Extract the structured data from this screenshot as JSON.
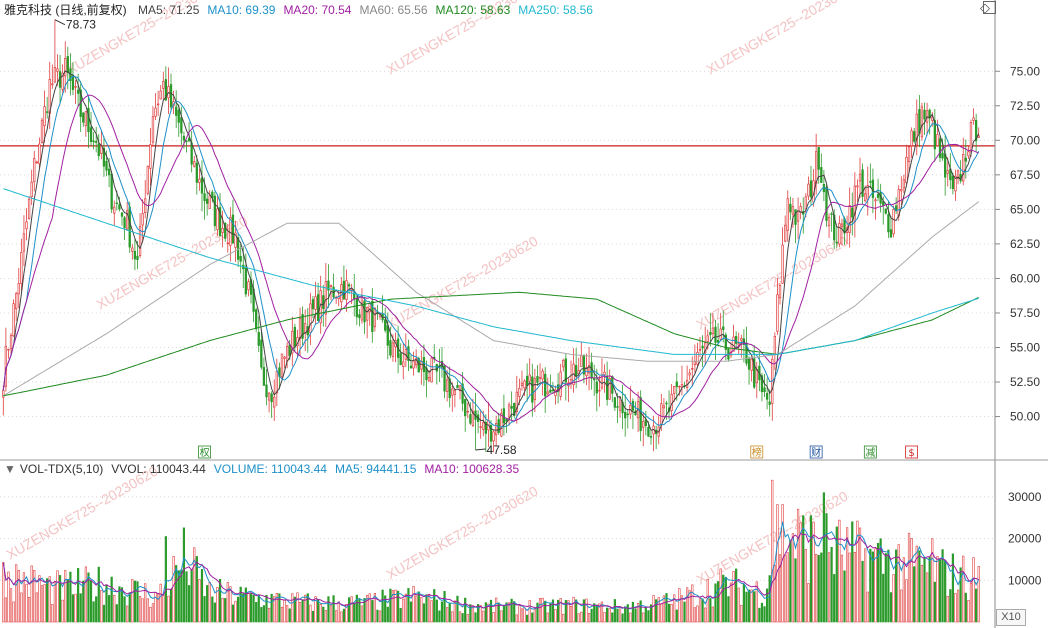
{
  "header": {
    "title": "雅克科技 (日线,前复权)",
    "ma_items": [
      {
        "label": "MA5: 71.25",
        "color": "#444444"
      },
      {
        "label": "MA10: 69.39",
        "color": "#1e90c8"
      },
      {
        "label": "MA20: 70.54",
        "color": "#a020a0"
      },
      {
        "label": "MA60: 65.56",
        "color": "#888888"
      },
      {
        "label": "MA120: 58.63",
        "color": "#1f8a1f"
      },
      {
        "label": "MA250: 58.56",
        "color": "#20b8d0"
      }
    ]
  },
  "volume_header": {
    "items": [
      {
        "label": "VOL-TDX(5,10)",
        "color": "#333333"
      },
      {
        "label": "VVOL: 110043.44",
        "color": "#333333"
      },
      {
        "label": "VOLUME: 110043.44",
        "color": "#1e90c8"
      },
      {
        "label": "MA5: 94441.15",
        "color": "#1e90c8"
      },
      {
        "label": "MA10: 100628.35",
        "color": "#a020a0"
      }
    ]
  },
  "watermark": "XUZENGKE725--20230620",
  "zoom_label": "X10",
  "markers": [
    {
      "label": "权",
      "color": "#2a8a2a"
    },
    {
      "label": "榜",
      "color": "#c88a20"
    },
    {
      "label": "财",
      "color": "#2050a0"
    },
    {
      "label": "减",
      "color": "#2a8a2a"
    },
    {
      "label": "$",
      "color": "#d02020"
    }
  ],
  "colors": {
    "up": "#e03c3c",
    "down": "#2a9a2a",
    "ref_line": "#c81e1e",
    "grid": "#d8d8d8"
  },
  "chart_data": {
    "type": "candlestick",
    "price_axis": {
      "ticks": [
        "75.00",
        "72.50",
        "70.00",
        "67.50",
        "65.00",
        "62.50",
        "60.00",
        "57.50",
        "55.00",
        "52.50",
        "50.00"
      ],
      "range": [
        47.0,
        79.0
      ]
    },
    "volume_axis": {
      "ticks": [
        "30000",
        "20000",
        "10000"
      ],
      "range": [
        0,
        35000
      ]
    },
    "reference_price": 69.6,
    "annotations": [
      {
        "label": "78.73",
        "value": 78.73,
        "kind": "high"
      },
      {
        "label": "47.58",
        "value": 47.58,
        "kind": "low"
      }
    ],
    "anchors": {
      "close": [
        [
          0,
          53
        ],
        [
          6,
          60
        ],
        [
          12,
          68
        ],
        [
          18,
          74
        ],
        [
          24,
          75
        ],
        [
          30,
          72
        ],
        [
          36,
          70
        ],
        [
          42,
          66
        ],
        [
          48,
          64
        ],
        [
          52,
          61
        ],
        [
          58,
          72
        ],
        [
          62,
          74
        ],
        [
          66,
          72
        ],
        [
          72,
          69
        ],
        [
          78,
          66
        ],
        [
          84,
          64
        ],
        [
          90,
          63
        ],
        [
          96,
          58
        ],
        [
          100,
          53
        ],
        [
          104,
          52
        ],
        [
          108,
          54
        ],
        [
          114,
          56
        ],
        [
          120,
          57.5
        ],
        [
          126,
          59
        ],
        [
          132,
          59.5
        ],
        [
          138,
          58
        ],
        [
          144,
          57
        ],
        [
          150,
          55
        ],
        [
          156,
          54
        ],
        [
          162,
          53.5
        ],
        [
          168,
          53
        ],
        [
          174,
          52
        ],
        [
          180,
          50.5
        ],
        [
          186,
          49
        ],
        [
          192,
          49.5
        ],
        [
          198,
          51
        ],
        [
          204,
          52
        ],
        [
          210,
          52.5
        ],
        [
          216,
          53
        ],
        [
          222,
          53.5
        ],
        [
          228,
          53
        ],
        [
          234,
          52
        ],
        [
          240,
          51
        ],
        [
          246,
          50
        ],
        [
          252,
          49.5
        ],
        [
          258,
          50.5
        ],
        [
          264,
          52.5
        ],
        [
          270,
          54.5
        ],
        [
          276,
          55.5
        ],
        [
          282,
          55
        ],
        [
          288,
          54.5
        ],
        [
          294,
          51.5
        ],
        [
          297,
          51
        ],
        [
          300,
          58
        ],
        [
          304,
          66
        ],
        [
          308,
          64
        ],
        [
          312,
          66
        ],
        [
          316,
          69
        ],
        [
          320,
          64
        ],
        [
          324,
          63
        ],
        [
          328,
          65
        ],
        [
          332,
          67
        ],
        [
          336,
          66
        ],
        [
          340,
          65
        ],
        [
          344,
          64
        ],
        [
          348,
          67
        ],
        [
          352,
          70
        ],
        [
          356,
          72
        ],
        [
          360,
          71
        ],
        [
          364,
          68
        ],
        [
          368,
          66
        ],
        [
          370,
          67
        ],
        [
          374,
          70
        ],
        [
          378,
          71.25
        ]
      ],
      "ma60": [
        [
          0,
          51.5
        ],
        [
          40,
          56
        ],
        [
          80,
          61
        ],
        [
          110,
          64
        ],
        [
          130,
          64
        ],
        [
          160,
          59
        ],
        [
          190,
          55.5
        ],
        [
          220,
          54.5
        ],
        [
          250,
          54
        ],
        [
          280,
          54
        ],
        [
          300,
          54.5
        ],
        [
          330,
          58
        ],
        [
          360,
          63
        ],
        [
          378,
          65.56
        ]
      ],
      "ma120": [
        [
          0,
          51.5
        ],
        [
          40,
          53
        ],
        [
          80,
          55.5
        ],
        [
          110,
          57
        ],
        [
          150,
          58.5
        ],
        [
          200,
          59
        ],
        [
          230,
          58.5
        ],
        [
          260,
          56
        ],
        [
          280,
          55
        ],
        [
          300,
          54.5
        ],
        [
          330,
          55.5
        ],
        [
          360,
          57
        ],
        [
          378,
          58.63
        ]
      ],
      "ma250": [
        [
          0,
          66.5
        ],
        [
          40,
          64
        ],
        [
          80,
          61.5
        ],
        [
          120,
          59.5
        ],
        [
          160,
          58
        ],
        [
          190,
          56.5
        ],
        [
          220,
          55.5
        ],
        [
          260,
          54.5
        ],
        [
          300,
          54.5
        ],
        [
          330,
          55.5
        ],
        [
          360,
          57.5
        ],
        [
          378,
          58.56
        ]
      ]
    },
    "series": [
      {
        "name": "MA5",
        "value": 71.25
      },
      {
        "name": "MA10",
        "value": 69.39
      },
      {
        "name": "MA20",
        "value": 70.54
      },
      {
        "name": "MA60",
        "value": 65.56
      },
      {
        "name": "MA120",
        "value": 58.63
      },
      {
        "name": "MA250",
        "value": 58.56
      }
    ],
    "volume_anchors": [
      [
        0,
        11000
      ],
      [
        20,
        8000
      ],
      [
        40,
        9000
      ],
      [
        60,
        6000
      ],
      [
        70,
        15000
      ],
      [
        80,
        7000
      ],
      [
        100,
        5500
      ],
      [
        120,
        4500
      ],
      [
        140,
        4500
      ],
      [
        160,
        6000
      ],
      [
        180,
        4000
      ],
      [
        200,
        3500
      ],
      [
        220,
        4000
      ],
      [
        240,
        3500
      ],
      [
        260,
        5000
      ],
      [
        280,
        9000
      ],
      [
        295,
        7000
      ],
      [
        300,
        22000
      ],
      [
        310,
        19000
      ],
      [
        330,
        16000
      ],
      [
        350,
        14000
      ],
      [
        370,
        11000
      ],
      [
        378,
        10500
      ]
    ]
  }
}
